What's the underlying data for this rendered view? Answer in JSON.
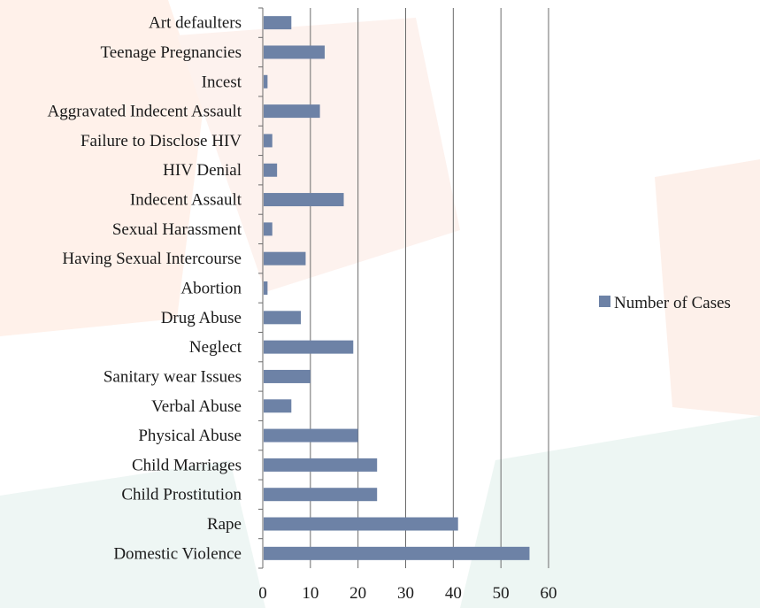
{
  "chart_data": {
    "type": "bar",
    "orientation": "horizontal",
    "categories": [
      "Art defaulters",
      "Teenage Pregnancies",
      "Incest",
      "Aggravated Indecent Assault",
      "Failure to Disclose HIV",
      "HIV Denial",
      "Indecent Assault",
      "Sexual Harassment",
      "Having Sexual Intercourse",
      "Abortion",
      "Drug Abuse",
      "Neglect",
      "Sanitary wear Issues",
      "Verbal Abuse",
      "Physical Abuse",
      "Child Marriages",
      "Child Prostitution",
      "Rape",
      "Domestic Violence"
    ],
    "series": [
      {
        "name": "Number of Cases",
        "values": [
          6,
          13,
          1,
          12,
          2,
          3,
          17,
          2,
          9,
          1,
          8,
          19,
          10,
          6,
          20,
          24,
          24,
          41,
          56
        ]
      }
    ],
    "xlim": [
      0,
      60
    ],
    "ticks": [
      "0",
      "10",
      "20",
      "30",
      "40",
      "50",
      "60"
    ],
    "grid": true,
    "legend_position": "right",
    "bar_color": "#6d82a6"
  }
}
